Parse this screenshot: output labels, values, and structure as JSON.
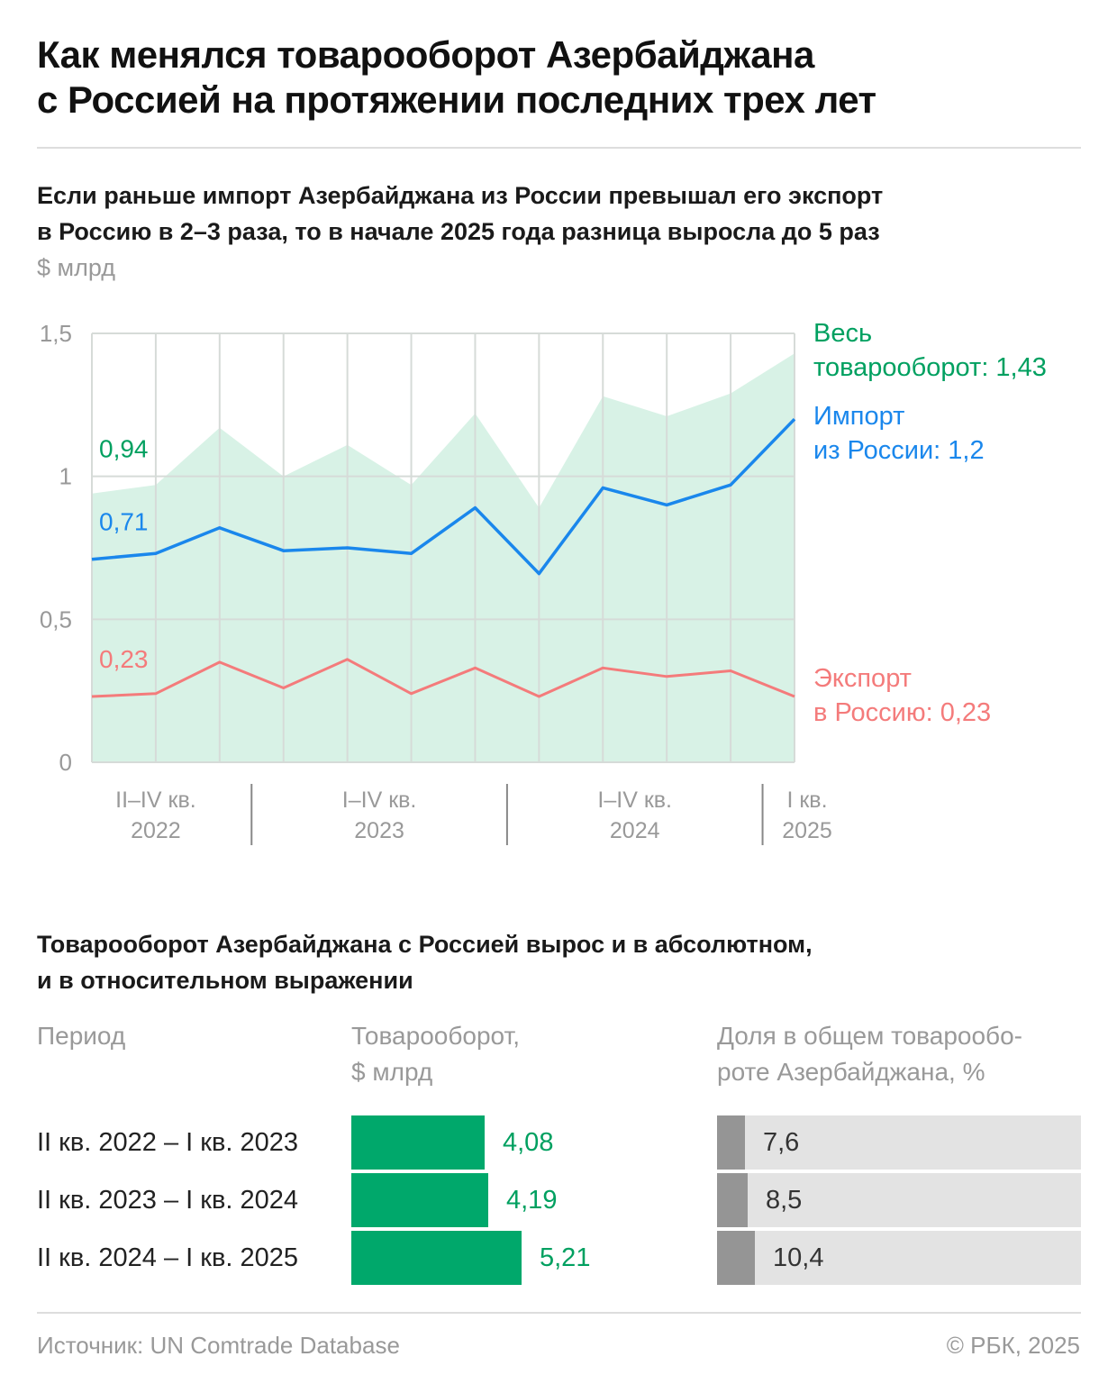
{
  "title": {
    "line1": "Как менялся товарооборот Азербайджана",
    "line2": "с Россией на протяжении последних трех лет"
  },
  "subtitle": {
    "line1": "Если раньше импорт Азербайджана из России превышал его экспорт",
    "line2": "в Россию в 2–3 раза, то в начале 2025 года разница выросла до 5 раз"
  },
  "unit": "$ млрд",
  "colors": {
    "total_fill": "#d8f2e6",
    "total_text": "#00a060",
    "import": "#1a87ec",
    "export": "#f47b7b",
    "grid": "#d6dbd8",
    "axis_text": "#999999",
    "bar_green": "#00a86b",
    "share_bar": "#959595",
    "share_bg": "#e3e3e3"
  },
  "chart_data": {
    "type": "area",
    "ylim": [
      0,
      1.5
    ],
    "y_ticks": [
      {
        "value": 0,
        "label": "0"
      },
      {
        "value": 0.5,
        "label": "0,5"
      },
      {
        "value": 1,
        "label": "1"
      },
      {
        "value": 1.5,
        "label": "1,5"
      }
    ],
    "quarters": [
      "II кв. 2022",
      "III кв. 2022",
      "IV кв. 2022",
      "I кв. 2023",
      "II кв. 2023",
      "III кв. 2023",
      "IV кв. 2023",
      "I кв. 2024",
      "II кв. 2024",
      "III кв. 2024",
      "IV кв. 2024",
      "I кв. 2025"
    ],
    "year_groups": [
      {
        "line1": "II–IV кв.",
        "line2": "2022",
        "from": 0,
        "to": 2
      },
      {
        "line1": "I–IV кв.",
        "line2": "2023",
        "from": 3,
        "to": 6
      },
      {
        "line1": "I–IV кв.",
        "line2": "2024",
        "from": 7,
        "to": 10
      },
      {
        "line1": "I кв.",
        "line2": "2025",
        "from": 11,
        "to": 11
      }
    ],
    "series": [
      {
        "key": "total",
        "kind": "area",
        "values": [
          0.94,
          0.97,
          1.17,
          1.0,
          1.11,
          0.97,
          1.22,
          0.89,
          1.28,
          1.21,
          1.29,
          1.43
        ],
        "start_label": "0,94",
        "end_label": [
          "Весь",
          "товарооборот: 1,43"
        ]
      },
      {
        "key": "import",
        "kind": "line",
        "values": [
          0.71,
          0.73,
          0.82,
          0.74,
          0.75,
          0.73,
          0.89,
          0.66,
          0.96,
          0.9,
          0.97,
          1.2
        ],
        "start_label": "0,71",
        "end_label": [
          "Импорт",
          "из России: 1,2"
        ]
      },
      {
        "key": "export",
        "kind": "line",
        "values": [
          0.23,
          0.24,
          0.35,
          0.26,
          0.36,
          0.24,
          0.33,
          0.23,
          0.33,
          0.3,
          0.32,
          0.23
        ],
        "start_label": "0,23",
        "end_label": [
          "Экспорт",
          "в Россию: 0,23"
        ]
      }
    ]
  },
  "table": {
    "title": {
      "line1": "Товарооборот Азербайджана с Россией вырос и в абсолютном,",
      "line2": "и в относительном выражении"
    },
    "headers": {
      "period": "Период",
      "turnover": [
        "Товарооборот,",
        "$ млрд"
      ],
      "share": [
        "Доля в общем товарообо-",
        "роте Азербайджана, %"
      ]
    },
    "rows": [
      {
        "period": "II кв. 2022 – I кв. 2023",
        "turnover": 4.08,
        "turnover_label": "4,08",
        "share": 7.6,
        "share_label": "7,6"
      },
      {
        "period": "II кв. 2023 – I кв. 2024",
        "turnover": 4.19,
        "turnover_label": "4,19",
        "share": 8.5,
        "share_label": "8,5"
      },
      {
        "period": "II кв. 2024 – I кв. 2025",
        "turnover": 5.21,
        "turnover_label": "5,21",
        "share": 10.4,
        "share_label": "10,4"
      }
    ]
  },
  "footer": {
    "source": "Источник: UN Comtrade Database",
    "copyright": "© РБК, 2025"
  }
}
